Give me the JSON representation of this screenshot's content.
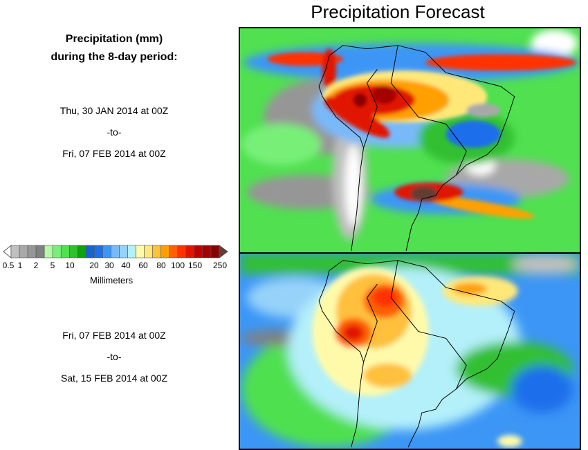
{
  "chart_data": {
    "type": "heatmap",
    "title": "Precipitation Forecast",
    "subtitle_lines": [
      "Precipitation (mm)",
      "during the 8-day period:"
    ],
    "panels": [
      {
        "from": "Thu, 30 JAN 2014 at 00Z",
        "sep": "-to-",
        "to": "Fri, 07 FEB 2014 at 00Z"
      },
      {
        "from": "Fri, 07 FEB 2014 at 00Z",
        "sep": "-to-",
        "to": "Sat, 15 FEB 2014 at 00Z"
      }
    ],
    "colorbar": {
      "label": "Millimeters",
      "tick_labels": [
        "0.5",
        "1",
        "2",
        "5",
        "10",
        "20",
        "30",
        "40",
        "60",
        "80",
        "100",
        "150",
        "250"
      ],
      "under_color": "#ffffff",
      "over_color": "#643c32",
      "colors": [
        "#c0c0c0",
        "#a8a8a8",
        "#969696",
        "#808080",
        "#b4f8a8",
        "#78f078",
        "#50e050",
        "#30c030",
        "#10a010",
        "#1464d2",
        "#1e6eeb",
        "#3c96f5",
        "#78b9fa",
        "#96d2fa",
        "#b4f0fa",
        "#fffaaa",
        "#ffe878",
        "#ffc03c",
        "#ffa000",
        "#ff6000",
        "#ff3200",
        "#e11400",
        "#c00000",
        "#a50000",
        "#870000"
      ]
    }
  }
}
